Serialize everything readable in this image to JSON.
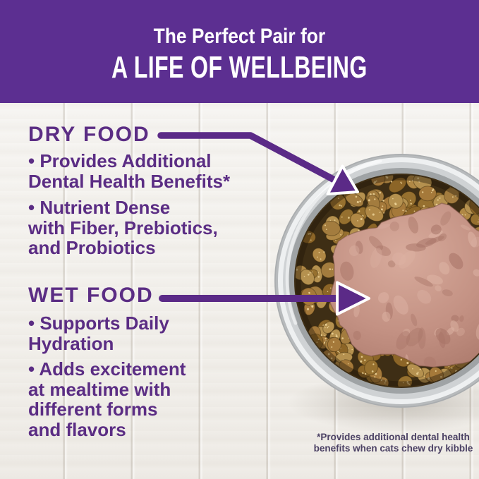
{
  "header": {
    "line1": "The Perfect Pair for",
    "line2": "A LIFE OF WELLBEING"
  },
  "sections": [
    {
      "heading": "DRY FOOD",
      "bullets": [
        {
          "lines": [
            "• Provides Additional",
            "Dental Health Benefits*"
          ]
        },
        {
          "lines": [
            "• Nutrient Dense",
            "with Fiber, Prebiotics,",
            "and Probiotics"
          ]
        }
      ]
    },
    {
      "heading": "WET FOOD",
      "bullets": [
        {
          "lines": [
            "• Supports Daily",
            "Hydration"
          ]
        },
        {
          "lines": [
            "• Adds excitement",
            "at mealtime with",
            "different forms",
            "and flavors"
          ]
        }
      ]
    }
  ],
  "footnote": {
    "lines": [
      "*Provides additional dental health",
      "benefits when cats chew dry kibble"
    ]
  },
  "colors": {
    "banner": "#5c2f91",
    "text": "#5b2d84",
    "arrow": "#5b2a87",
    "arrow_outline": "#ffffff",
    "footnote": "#4b4164"
  },
  "photo": {
    "steel_ring": [
      "#b7babc",
      "#eef0f1",
      "#cfd2d4",
      "#9fa3a5"
    ],
    "bowl_interior": "#3e2e15",
    "kibble_palette": [
      "#a5793a",
      "#96702f",
      "#b08845",
      "#8c6527",
      "#a37c3e",
      "#b5914f"
    ],
    "kibble_speckle": "#ecd296",
    "pate_gradient": [
      "#d8ab9c",
      "#c39183",
      "#a87668"
    ],
    "pate_spot_light": "#ddb3a4",
    "pate_spot_dark": "#a87467"
  }
}
